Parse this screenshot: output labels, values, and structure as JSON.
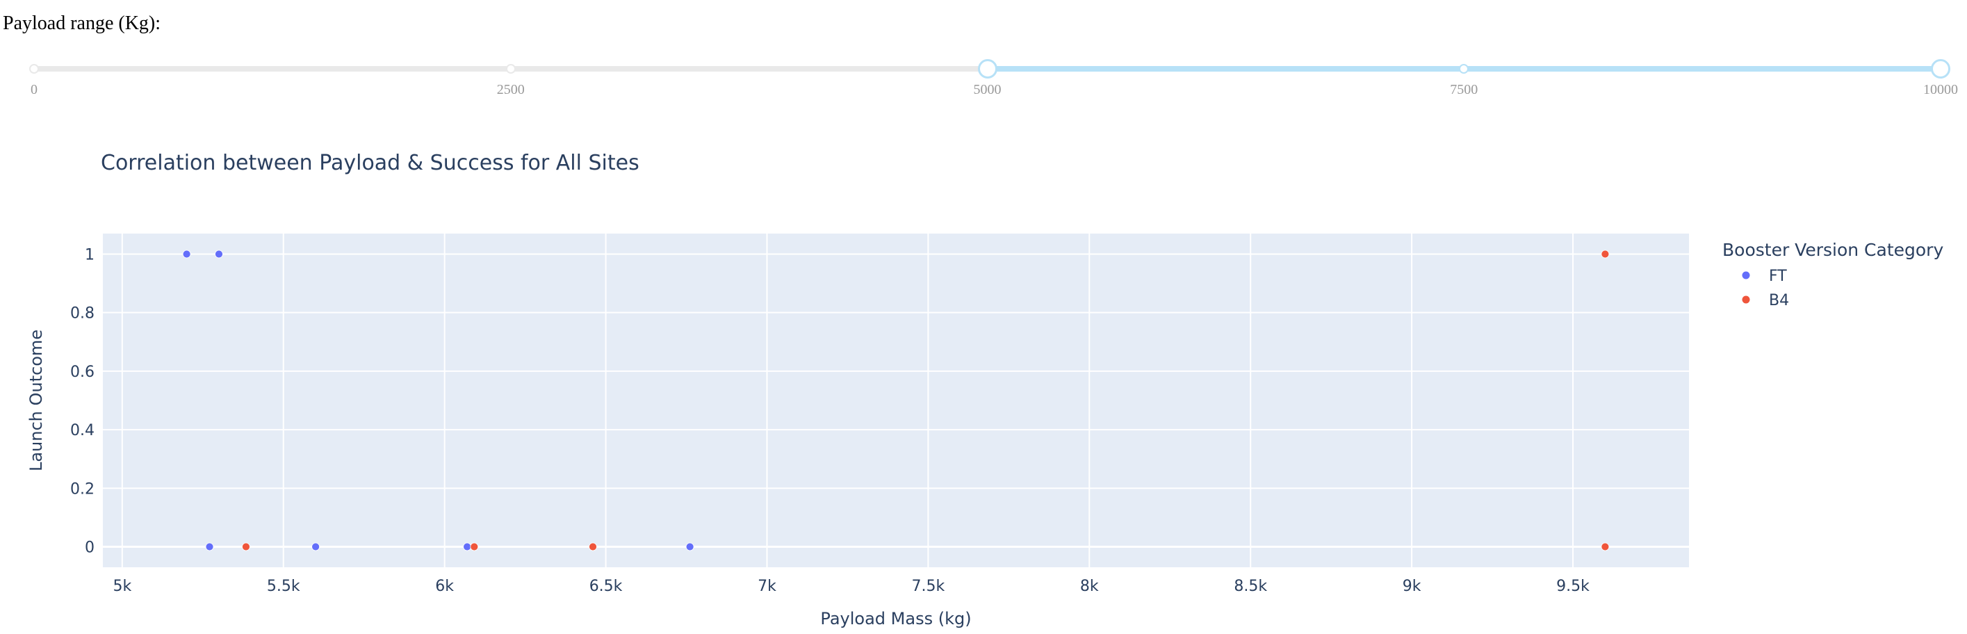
{
  "slider": {
    "label": "Payload range (Kg):",
    "min": 0,
    "max": 10000,
    "value": [
      5000,
      10000
    ],
    "marks": [
      "0",
      "2500",
      "5000",
      "7500",
      "10000"
    ]
  },
  "chart_data": {
    "type": "scatter",
    "title": "Correlation between Payload & Success for All Sites",
    "xlabel": "Payload Mass (kg)",
    "ylabel": "Launch Outcome",
    "xlim": [
      4940,
      9860
    ],
    "ylim": [
      -0.07,
      1.07
    ],
    "xticks": [
      5000,
      5500,
      6000,
      6500,
      7000,
      7500,
      8000,
      8500,
      9000,
      9500
    ],
    "xtick_labels": [
      "5k",
      "5.5k",
      "6k",
      "6.5k",
      "7k",
      "7.5k",
      "8k",
      "8.5k",
      "9k",
      "9.5k"
    ],
    "yticks": [
      0,
      0.2,
      0.4,
      0.6,
      0.8,
      1
    ],
    "ytick_labels": [
      "0",
      "0.2",
      "0.4",
      "0.6",
      "0.8",
      "1"
    ],
    "grid": true,
    "legend_title": "Booster Version Category",
    "legend_position": "top-right",
    "series": [
      {
        "name": "FT",
        "color": "#636efa",
        "points": [
          {
            "x": 5200,
            "y": 1
          },
          {
            "x": 5300,
            "y": 1
          },
          {
            "x": 5271,
            "y": 0
          },
          {
            "x": 5600,
            "y": 0
          },
          {
            "x": 6070,
            "y": 0
          },
          {
            "x": 6761,
            "y": 0
          }
        ]
      },
      {
        "name": "B4",
        "color": "#ef553b",
        "points": [
          {
            "x": 9600,
            "y": 1
          },
          {
            "x": 5384,
            "y": 0
          },
          {
            "x": 6092,
            "y": 0
          },
          {
            "x": 6460,
            "y": 0
          },
          {
            "x": 9600,
            "y": 0
          }
        ]
      }
    ]
  }
}
